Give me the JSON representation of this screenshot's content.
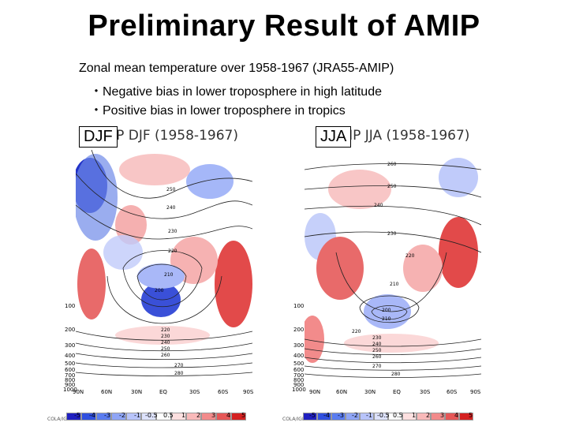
{
  "slide": {
    "title": "Preliminary Result of AMIP",
    "subtitle": "Zonal mean temperature over 1958-1967 (JRA55-AMIP)",
    "bullets": [
      "・Negative bias in lower troposphere in high latitude",
      "・Positive bias in lower troposphere in tropics"
    ]
  },
  "panels": [
    {
      "season_label": "DJF",
      "plot_title": "T AMIP DJF (1958-1967)",
      "contour_labels": [
        "250",
        "240",
        "230",
        "220",
        "210",
        "200",
        "220",
        "230",
        "240",
        "250",
        "260",
        "270",
        "280"
      ],
      "credit": "COLA/IGES"
    },
    {
      "season_label": "JJA",
      "plot_title": "T AMIP JJA (1958-1967)",
      "contour_labels": [
        "260",
        "250",
        "240",
        "230",
        "220",
        "210",
        "200",
        "210",
        "220",
        "230",
        "240",
        "250",
        "260",
        "270",
        "280"
      ],
      "credit": "COLA/IGES"
    }
  ],
  "axes": {
    "y_ticks": [
      "100",
      "200",
      "300",
      "400",
      "500",
      "600",
      "700",
      "800",
      "900",
      "1000"
    ],
    "x_ticks": [
      "90N",
      "60N",
      "30N",
      "EQ",
      "30S",
      "60S",
      "90S"
    ]
  },
  "colorbar": {
    "labels": [
      "-5",
      "-4",
      "-3",
      "-2",
      "-1",
      "-0.5",
      "0.5",
      "1",
      "2",
      "3",
      "4",
      "5"
    ],
    "colors": [
      "#2020c0",
      "#3050e0",
      "#5a7cf0",
      "#8fa5f6",
      "#b8c4fa",
      "#dde2fc",
      "#ffffff",
      "#fde0e0",
      "#f9b9b9",
      "#f28b8b",
      "#e65757",
      "#d42020"
    ]
  }
}
